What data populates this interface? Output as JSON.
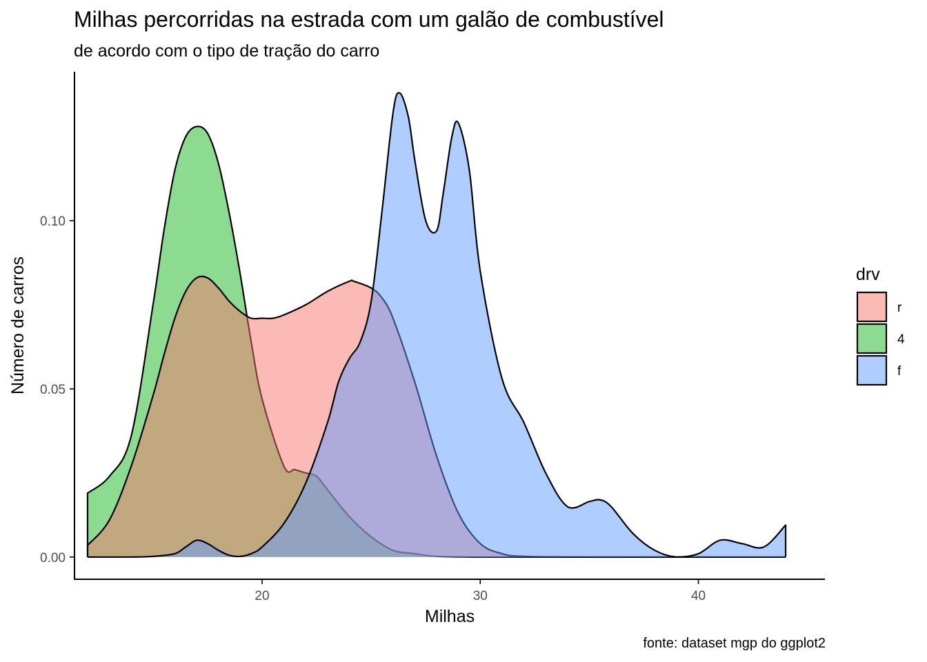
{
  "chart_data": {
    "type": "area",
    "subtype": "density",
    "title": "Milhas percorridas na estrada com um galão de combustível",
    "subtitle": "de acordo com o tipo de tração do carro",
    "caption": "fonte: dataset mgp do ggplot2",
    "xlabel": "Milhas",
    "ylabel": "Número de carros",
    "xlim": [
      11.4,
      45.8
    ],
    "ylim": [
      -0.0066,
      0.1443
    ],
    "x_ticks": [
      20,
      30,
      40
    ],
    "x_tick_labels": [
      "20",
      "30",
      "40"
    ],
    "y_ticks": [
      0.0,
      0.05,
      0.1
    ],
    "y_tick_labels": [
      "0.00",
      "0.05",
      "0.10"
    ],
    "grid": false,
    "legend": {
      "title": "drv",
      "position": "right",
      "entries": [
        "r",
        "4",
        "f"
      ]
    },
    "fill_opacity": 0.5,
    "series": [
      {
        "name": "4",
        "color": "#1AB723",
        "x": [
          12,
          13,
          14,
          15,
          15.5,
          16,
          16.5,
          17,
          17.5,
          18,
          18.5,
          19,
          19.5,
          20,
          21,
          21.5,
          22,
          22.5,
          23,
          24,
          25,
          26,
          27,
          28,
          30,
          32,
          35,
          40,
          44
        ],
        "y": [
          0.019,
          0.024,
          0.036,
          0.075,
          0.097,
          0.115,
          0.125,
          0.128,
          0.126,
          0.117,
          0.102,
          0.084,
          0.064,
          0.047,
          0.027,
          0.026,
          0.025,
          0.024,
          0.02,
          0.012,
          0.006,
          0.002,
          0.001,
          0.0002,
          0.0,
          0.0,
          0.0,
          0.0,
          0.0
        ]
      },
      {
        "name": "r",
        "color": "#F8766D",
        "x": [
          12,
          13,
          14,
          15,
          15.5,
          16,
          16.5,
          17,
          17.5,
          18,
          18.5,
          19,
          19.5,
          20,
          20.5,
          21,
          22,
          23,
          24,
          24.2,
          25,
          25.5,
          26,
          27,
          28,
          29,
          30,
          31,
          32,
          35,
          40,
          44
        ],
        "y": [
          0.0035,
          0.011,
          0.027,
          0.048,
          0.06,
          0.071,
          0.079,
          0.083,
          0.083,
          0.08,
          0.076,
          0.073,
          0.071,
          0.071,
          0.071,
          0.072,
          0.075,
          0.079,
          0.082,
          0.082,
          0.08,
          0.077,
          0.071,
          0.052,
          0.03,
          0.013,
          0.004,
          0.001,
          0.0002,
          0.0,
          0.0,
          0.0
        ]
      },
      {
        "name": "f",
        "color": "#619CFF",
        "x": [
          12,
          14,
          15,
          16,
          16.5,
          17,
          17.5,
          18,
          18.5,
          19,
          19.5,
          20,
          21,
          22,
          23,
          23.5,
          24,
          24.5,
          25,
          25.5,
          26,
          26.3,
          26.7,
          27,
          27.5,
          28,
          28.3,
          28.7,
          29,
          29.5,
          30,
          31,
          32,
          33,
          34,
          35,
          35.5,
          36,
          37,
          38,
          39,
          40,
          41,
          42,
          43,
          44
        ],
        "y": [
          0.0,
          0.0,
          0.0002,
          0.001,
          0.003,
          0.005,
          0.004,
          0.002,
          0.0005,
          0.0002,
          0.001,
          0.003,
          0.01,
          0.022,
          0.04,
          0.052,
          0.059,
          0.064,
          0.076,
          0.103,
          0.132,
          0.138,
          0.131,
          0.118,
          0.1,
          0.097,
          0.108,
          0.125,
          0.129,
          0.115,
          0.085,
          0.053,
          0.04,
          0.025,
          0.015,
          0.0165,
          0.017,
          0.015,
          0.007,
          0.002,
          0.0,
          0.001,
          0.005,
          0.004,
          0.003,
          0.0095
        ]
      }
    ]
  }
}
